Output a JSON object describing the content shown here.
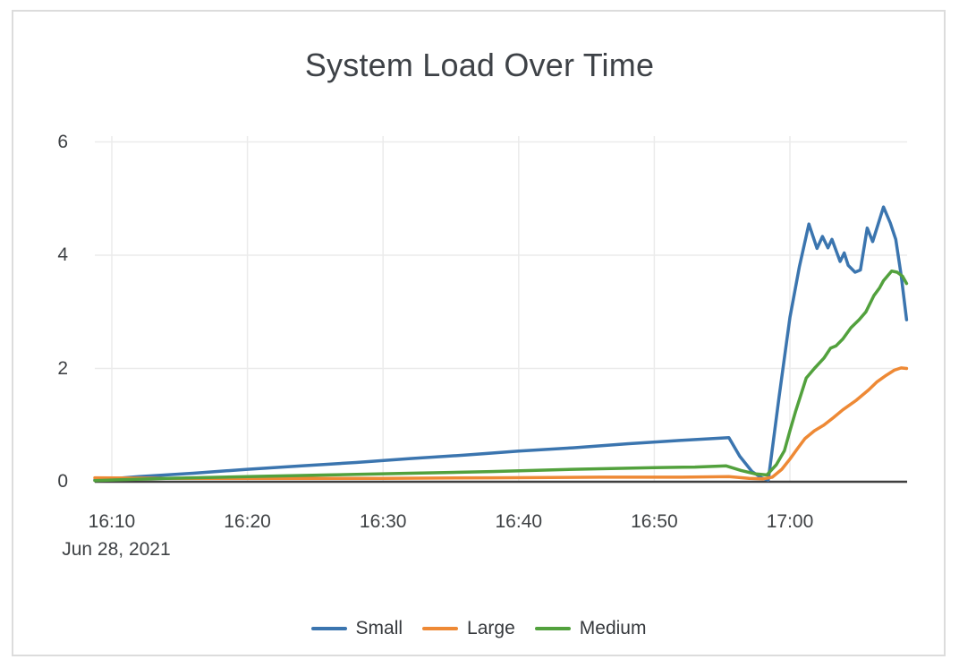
{
  "chart_data": {
    "type": "line",
    "title": "System Load Over Time",
    "x_axis": {
      "date_label": "Jun 28, 2021",
      "ticks": [
        {
          "t": 10,
          "label": "16:10"
        },
        {
          "t": 20,
          "label": "16:20"
        },
        {
          "t": 30,
          "label": "16:30"
        },
        {
          "t": 40,
          "label": "16:40"
        },
        {
          "t": 50,
          "label": "16:50"
        },
        {
          "t": 60,
          "label": "17:00"
        }
      ],
      "range_minutes_after_16_00": [
        8.75,
        68.64
      ]
    },
    "y_axis": {
      "ticks": [
        {
          "v": 0,
          "label": "0"
        },
        {
          "v": 2,
          "label": "2"
        },
        {
          "v": 4,
          "label": "4"
        },
        {
          "v": 6,
          "label": "6"
        }
      ],
      "range": [
        0,
        6.1
      ],
      "grid": true
    },
    "legend_position": "bottom-center",
    "series": [
      {
        "name": "Small",
        "color": "#3B75AF",
        "points": [
          [
            8.75,
            0.03
          ],
          [
            12,
            0.09
          ],
          [
            16,
            0.15
          ],
          [
            20,
            0.22
          ],
          [
            24,
            0.28
          ],
          [
            28,
            0.34
          ],
          [
            32,
            0.41
          ],
          [
            36,
            0.47
          ],
          [
            40,
            0.54
          ],
          [
            44,
            0.6
          ],
          [
            48,
            0.67
          ],
          [
            52,
            0.73
          ],
          [
            55.5,
            0.78
          ],
          [
            56.3,
            0.45
          ],
          [
            57.2,
            0.18
          ],
          [
            57.9,
            0.07
          ],
          [
            58.4,
            0.03
          ],
          [
            59.2,
            1.5
          ],
          [
            60,
            2.9
          ],
          [
            60.7,
            3.8
          ],
          [
            61.4,
            4.55
          ],
          [
            62,
            4.12
          ],
          [
            62.4,
            4.33
          ],
          [
            62.8,
            4.13
          ],
          [
            63.1,
            4.28
          ],
          [
            63.7,
            3.89
          ],
          [
            64,
            4.04
          ],
          [
            64.3,
            3.82
          ],
          [
            64.8,
            3.7
          ],
          [
            65.2,
            3.74
          ],
          [
            65.7,
            4.48
          ],
          [
            66.1,
            4.24
          ],
          [
            66.9,
            4.85
          ],
          [
            67.4,
            4.57
          ],
          [
            67.8,
            4.28
          ],
          [
            68.2,
            3.65
          ],
          [
            68.6,
            2.86
          ]
        ]
      },
      {
        "name": "Large",
        "color": "#EE8935",
        "points": [
          [
            8.75,
            0.07
          ],
          [
            14,
            0.06
          ],
          [
            22,
            0.06
          ],
          [
            30,
            0.06
          ],
          [
            38,
            0.07
          ],
          [
            46,
            0.08
          ],
          [
            52,
            0.08
          ],
          [
            55.5,
            0.09
          ],
          [
            57,
            0.06
          ],
          [
            58,
            0.05
          ],
          [
            58.7,
            0.08
          ],
          [
            59.4,
            0.22
          ],
          [
            60,
            0.4
          ],
          [
            60.6,
            0.6
          ],
          [
            61.1,
            0.76
          ],
          [
            61.8,
            0.9
          ],
          [
            62.5,
            1.0
          ],
          [
            63.2,
            1.13
          ],
          [
            63.9,
            1.27
          ],
          [
            64.9,
            1.44
          ],
          [
            65.8,
            1.62
          ],
          [
            66.4,
            1.76
          ],
          [
            67.1,
            1.88
          ],
          [
            67.7,
            1.97
          ],
          [
            68.2,
            2.01
          ],
          [
            68.6,
            2.0
          ]
        ]
      },
      {
        "name": "Medium",
        "color": "#52A13D",
        "points": [
          [
            8.75,
            0.02
          ],
          [
            14,
            0.06
          ],
          [
            20,
            0.09
          ],
          [
            26,
            0.12
          ],
          [
            32,
            0.15
          ],
          [
            38,
            0.18
          ],
          [
            44,
            0.22
          ],
          [
            50,
            0.25
          ],
          [
            53,
            0.26
          ],
          [
            55.3,
            0.28
          ],
          [
            56.4,
            0.2
          ],
          [
            57.4,
            0.14
          ],
          [
            58.3,
            0.12
          ],
          [
            59,
            0.3
          ],
          [
            59.6,
            0.55
          ],
          [
            60,
            0.9
          ],
          [
            60.4,
            1.23
          ],
          [
            61.2,
            1.83
          ],
          [
            61.8,
            2.0
          ],
          [
            62.5,
            2.18
          ],
          [
            63,
            2.36
          ],
          [
            63.4,
            2.4
          ],
          [
            63.9,
            2.52
          ],
          [
            64.5,
            2.72
          ],
          [
            65.1,
            2.86
          ],
          [
            65.6,
            3.0
          ],
          [
            66.2,
            3.29
          ],
          [
            66.6,
            3.42
          ],
          [
            66.9,
            3.55
          ],
          [
            67.5,
            3.72
          ],
          [
            67.9,
            3.7
          ],
          [
            68.3,
            3.63
          ],
          [
            68.6,
            3.5
          ]
        ]
      }
    ]
  },
  "colors": {
    "grid": "#ebebeb",
    "axis_line": "#3f3f3f",
    "text": "#3f4245",
    "card_border": "#dcdcdc",
    "background": "#ffffff"
  }
}
